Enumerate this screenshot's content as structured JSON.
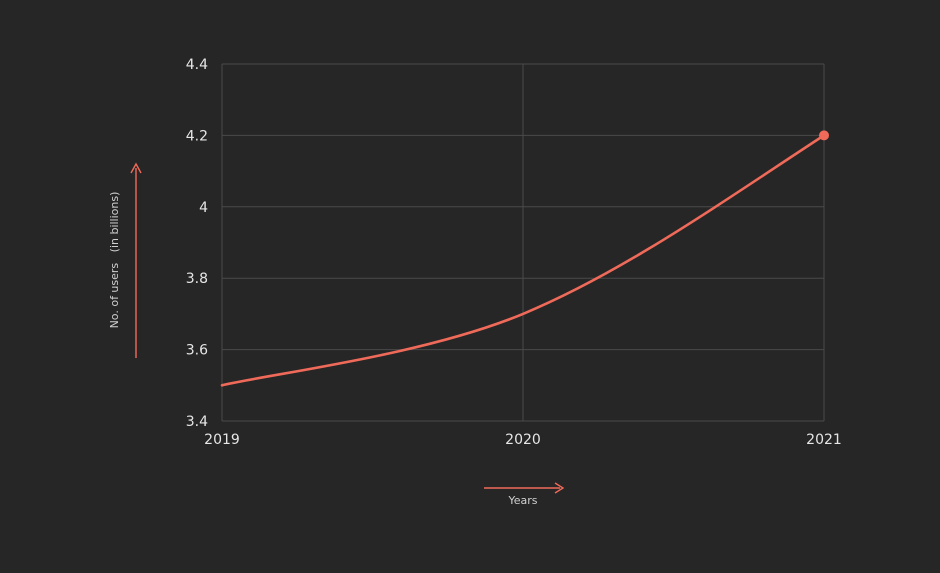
{
  "colors": {
    "background": "#262626",
    "grid": "#4a4a4a",
    "tick_text": "#e6e6e6",
    "label_text": "#d0d0d0",
    "accent": "#f06a5a"
  },
  "chart_data": {
    "type": "line",
    "title": "",
    "xlabel": "Years",
    "ylabel": "No. of users   (in billions)",
    "x_ticks": [
      "2019",
      "2020",
      "2021"
    ],
    "y_ticks": [
      "3.4",
      "3.6",
      "3.8",
      "4",
      "4.2",
      "4.4"
    ],
    "xlim": [
      2019,
      2021
    ],
    "ylim": [
      3.4,
      4.4
    ],
    "grid": true,
    "series": [
      {
        "values": [
          {
            "x": 2019,
            "y": 3.5
          },
          {
            "x": 2020,
            "y": 3.7
          },
          {
            "x": 2021,
            "y": 4.2
          }
        ]
      }
    ],
    "end_marker": {
      "x": 2021,
      "y": 4.2
    }
  }
}
